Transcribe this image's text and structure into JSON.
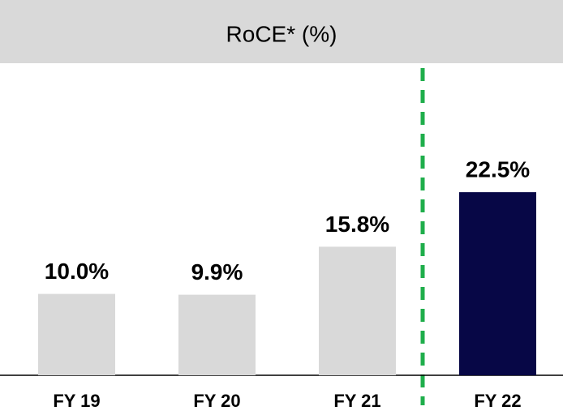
{
  "chart_data": {
    "type": "bar",
    "title": "RoCE* (%)",
    "categories": [
      "FY 19",
      "FY 20",
      "FY 21",
      "FY 22"
    ],
    "values": [
      10.0,
      9.9,
      15.8,
      22.5
    ],
    "value_labels": [
      "10.0%",
      "9.9%",
      "15.8%",
      "22.5%"
    ],
    "colors": [
      "#d9d9d9",
      "#d9d9d9",
      "#d9d9d9",
      "#070746"
    ]
  }
}
